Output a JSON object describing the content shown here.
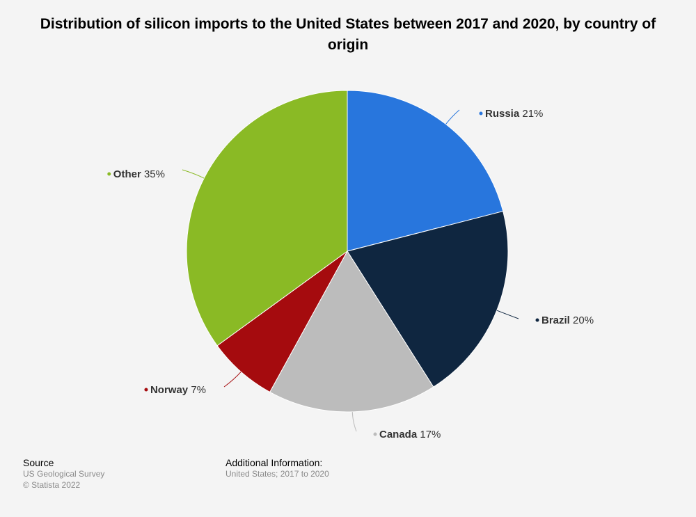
{
  "chart_data": {
    "type": "pie",
    "title": "Distribution of silicon imports to the United States between 2017 and 2020, by country of origin",
    "slices": [
      {
        "label": "Russia",
        "value": 21,
        "value_label": "21%",
        "color": "#2876dd"
      },
      {
        "label": "Brazil",
        "value": 20,
        "value_label": "20%",
        "color": "#0f2640"
      },
      {
        "label": "Canada",
        "value": 17,
        "value_label": "17%",
        "color": "#bcbcbc"
      },
      {
        "label": "Norway",
        "value": 7,
        "value_label": "7%",
        "color": "#a50b0e"
      },
      {
        "label": "Other",
        "value": 35,
        "value_label": "35%",
        "color": "#8aba25"
      }
    ]
  },
  "footer": {
    "source_heading": "Source",
    "source_line1": "US Geological Survey",
    "source_line2": "© Statista 2022",
    "info_heading": "Additional Information:",
    "info_line1": "United States; 2017 to 2020"
  }
}
